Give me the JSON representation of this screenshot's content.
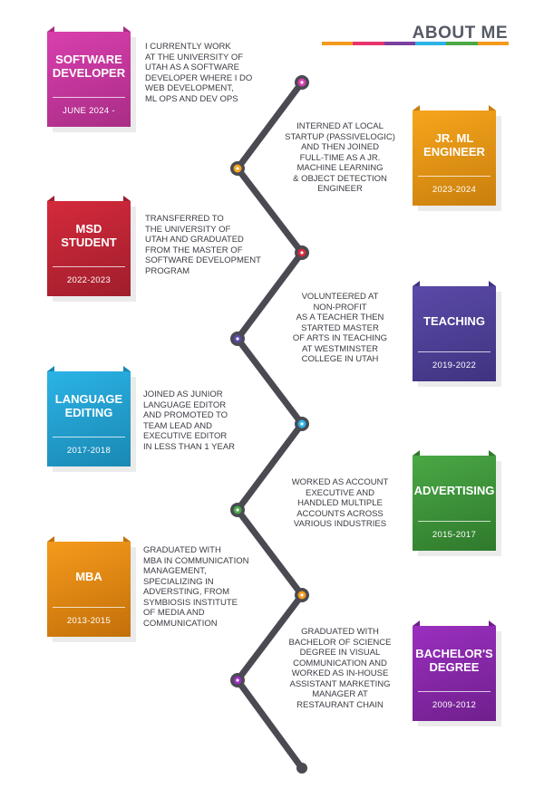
{
  "header": {
    "title": "ABOUT ME",
    "bar_colors": [
      "#f39a1e",
      "#e8336d",
      "#7b3fa0",
      "#2bb3e6",
      "#4aa845",
      "#f39a1e"
    ]
  },
  "timeline_color": "#4a4a52",
  "entries": [
    {
      "title": "SOFTWARE DEVELOPER",
      "date": "JUNE 2024 -",
      "color": "#d93fae",
      "color_dark": "#a92d86",
      "side": "left",
      "text": "I CURRENTLY WORK\nAT THE UNIVERSITY OF\nUTAH AS A SOFTWARE\nDEVELOPER WHERE I DO\nWEB DEVELOPMENT,\nML OPS AND DEV OPS"
    },
    {
      "title": "JR. ML ENGINEER",
      "date": "2023-2024",
      "color": "#f6a51c",
      "color_dark": "#c97f0d",
      "side": "right",
      "text": "INTERNED AT LOCAL\nSTARTUP (PASSIVELOGIC)\nAND THEN JOINED\nFULL-TIME AS A JR.\nMACHINE LEARNING\n& OBJECT DETECTION\nENGINEER"
    },
    {
      "title": "MSD STUDENT",
      "date": "2022-2023",
      "color": "#d42a3c",
      "color_dark": "#a01e2c",
      "side": "left",
      "text": "TRANSFERRED TO\nTHE UNIVERSITY OF\nUTAH AND GRADUATED\nFROM THE MASTER OF\nSOFTWARE DEVELOPMENT\nPROGRAM"
    },
    {
      "title": "TEACHING",
      "date": "2019-2022",
      "color": "#5b4aa8",
      "color_dark": "#3f3380",
      "side": "right",
      "text": "VOLUNTEERED AT\nNON-PROFIT\nAS A TEACHER THEN\nSTARTED MASTER\nOF ARTS IN TEACHING\nAT WESTMINSTER\nCOLLEGE IN UTAH"
    },
    {
      "title": "LANGUAGE EDITING",
      "date": "2017-2018",
      "color": "#2bb3e6",
      "color_dark": "#1a88b3",
      "side": "left",
      "text": "JOINED AS JUNIOR\nLANGUAGE EDITOR\nAND PROMOTED TO\nTEAM LEAD AND\nEXECUTIVE EDITOR\nIN LESS THAN 1 YEAR"
    },
    {
      "title": "ADVERTISING",
      "date": "2015-2017",
      "color": "#4aa845",
      "color_dark": "#2f7a2c",
      "side": "right",
      "text": "WORKED AS  ACCOUNT\nEXECUTIVE AND\nHANDLED MULTIPLE\nACCOUNTS ACROSS\nVARIOUS INDUSTRIES"
    },
    {
      "title": "MBA",
      "date": "2013-2015",
      "color": "#f59a1c",
      "color_dark": "#c3700a",
      "side": "left",
      "text": "GRADUATED WITH\nMBA IN COMMUNICATION\nMANAGEMENT,\nSPECIALIZING IN\nADVERSTING, FROM\nSYMBIOSIS INSTITUTE\nOF MEDIA AND\nCOMMUNICATION"
    },
    {
      "title": "BACHELOR'S DEGREE",
      "date": "2009-2012",
      "color": "#9b2fc0",
      "color_dark": "#6f1f8c",
      "side": "right",
      "text": "GRADUATED WITH\nBACHELOR OF SCIENCE\nDEGREE IN VISUAL\nCOMMUNICATION AND\nWORKED AS IN-HOUSE\nASSISTANT MARKETING\nMANAGER AT\nRESTAURANT CHAIN"
    }
  ]
}
